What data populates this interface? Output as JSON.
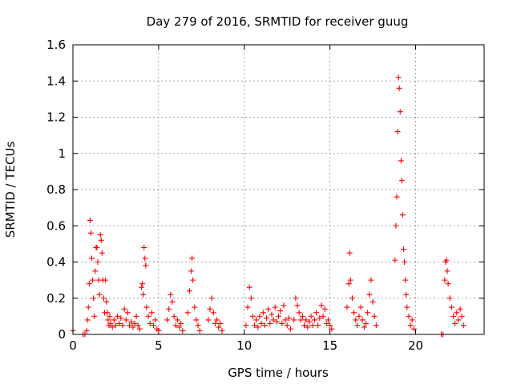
{
  "chart_data": {
    "type": "scatter",
    "title": "Day 279 of 2016, SRMTID for receiver guug",
    "xlabel": "GPS time / hours",
    "ylabel": "SRMTID / TECUs",
    "xlim": [
      0,
      24
    ],
    "ylim": [
      0,
      1.6
    ],
    "x_ticks": [
      "0",
      "5",
      "10",
      "15",
      "20"
    ],
    "y_ticks": [
      "0",
      "0.2",
      "0.4",
      "0.6",
      "0.8",
      "1",
      "1.2",
      "1.4",
      "1.6"
    ],
    "grid": true,
    "marker": "+",
    "color": "#ff0000",
    "series": [
      {
        "points": [
          [
            0.0,
            0.02
          ],
          [
            0.6,
            0.0
          ],
          [
            0.7,
            0.0
          ],
          [
            0.8,
            0.02
          ],
          [
            0.85,
            0.08
          ],
          [
            0.9,
            0.15
          ],
          [
            0.95,
            0.28
          ],
          [
            1.0,
            0.63
          ],
          [
            1.05,
            0.56
          ],
          [
            1.1,
            0.42
          ],
          [
            1.15,
            0.3
          ],
          [
            1.2,
            0.2
          ],
          [
            1.25,
            0.1
          ],
          [
            1.3,
            0.35
          ],
          [
            1.35,
            0.48
          ],
          [
            1.4,
            0.48
          ],
          [
            1.45,
            0.4
          ],
          [
            1.5,
            0.3
          ],
          [
            1.55,
            0.22
          ],
          [
            1.6,
            0.55
          ],
          [
            1.65,
            0.52
          ],
          [
            1.7,
            0.45
          ],
          [
            1.75,
            0.3
          ],
          [
            1.8,
            0.2
          ],
          [
            1.85,
            0.12
          ],
          [
            1.9,
            0.3
          ],
          [
            1.95,
            0.18
          ],
          [
            2.0,
            0.12
          ],
          [
            2.05,
            0.08
          ],
          [
            2.1,
            0.05
          ],
          [
            2.15,
            0.1
          ],
          [
            2.2,
            0.06
          ],
          [
            2.3,
            0.04
          ],
          [
            2.4,
            0.08
          ],
          [
            2.5,
            0.05
          ],
          [
            2.6,
            0.1
          ],
          [
            2.7,
            0.06
          ],
          [
            2.8,
            0.09
          ],
          [
            2.9,
            0.05
          ],
          [
            3.0,
            0.14
          ],
          [
            3.1,
            0.08
          ],
          [
            3.2,
            0.12
          ],
          [
            3.3,
            0.05
          ],
          [
            3.4,
            0.07
          ],
          [
            3.5,
            0.04
          ],
          [
            3.6,
            0.06
          ],
          [
            3.7,
            0.1
          ],
          [
            3.8,
            0.05
          ],
          [
            3.9,
            0.03
          ],
          [
            4.0,
            0.26
          ],
          [
            4.05,
            0.28
          ],
          [
            4.1,
            0.22
          ],
          [
            4.15,
            0.48
          ],
          [
            4.2,
            0.42
          ],
          [
            4.25,
            0.38
          ],
          [
            4.3,
            0.15
          ],
          [
            4.4,
            0.1
          ],
          [
            4.5,
            0.06
          ],
          [
            4.6,
            0.12
          ],
          [
            4.7,
            0.05
          ],
          [
            4.8,
            0.08
          ],
          [
            4.9,
            0.03
          ],
          [
            5.0,
            0.02
          ],
          [
            5.5,
            0.08
          ],
          [
            5.6,
            0.14
          ],
          [
            5.7,
            0.22
          ],
          [
            5.8,
            0.18
          ],
          [
            5.9,
            0.1
          ],
          [
            6.0,
            0.05
          ],
          [
            6.1,
            0.08
          ],
          [
            6.2,
            0.04
          ],
          [
            6.3,
            0.06
          ],
          [
            6.4,
            0.02
          ],
          [
            6.7,
            0.12
          ],
          [
            6.8,
            0.24
          ],
          [
            6.9,
            0.35
          ],
          [
            6.95,
            0.42
          ],
          [
            7.0,
            0.3
          ],
          [
            7.1,
            0.15
          ],
          [
            7.2,
            0.08
          ],
          [
            7.3,
            0.05
          ],
          [
            7.4,
            0.02
          ],
          [
            7.9,
            0.08
          ],
          [
            8.0,
            0.14
          ],
          [
            8.1,
            0.2
          ],
          [
            8.2,
            0.12
          ],
          [
            8.3,
            0.06
          ],
          [
            8.4,
            0.08
          ],
          [
            8.5,
            0.04
          ],
          [
            8.6,
            0.06
          ],
          [
            8.7,
            0.02
          ],
          [
            10.1,
            0.05
          ],
          [
            10.2,
            0.15
          ],
          [
            10.3,
            0.26
          ],
          [
            10.4,
            0.2
          ],
          [
            10.5,
            0.1
          ],
          [
            10.6,
            0.05
          ],
          [
            10.7,
            0.08
          ],
          [
            10.8,
            0.04
          ],
          [
            10.9,
            0.1
          ],
          [
            11.0,
            0.06
          ],
          [
            11.1,
            0.12
          ],
          [
            11.2,
            0.05
          ],
          [
            11.3,
            0.09
          ],
          [
            11.4,
            0.14
          ],
          [
            11.5,
            0.06
          ],
          [
            11.6,
            0.11
          ],
          [
            11.7,
            0.08
          ],
          [
            11.8,
            0.15
          ],
          [
            11.9,
            0.07
          ],
          [
            12.0,
            0.1
          ],
          [
            12.1,
            0.13
          ],
          [
            12.2,
            0.06
          ],
          [
            12.3,
            0.16
          ],
          [
            12.4,
            0.08
          ],
          [
            12.5,
            0.05
          ],
          [
            12.6,
            0.09
          ],
          [
            12.7,
            0.03
          ],
          [
            12.9,
            0.08
          ],
          [
            13.0,
            0.2
          ],
          [
            13.1,
            0.16
          ],
          [
            13.2,
            0.12
          ],
          [
            13.3,
            0.08
          ],
          [
            13.4,
            0.1
          ],
          [
            13.5,
            0.05
          ],
          [
            13.6,
            0.08
          ],
          [
            13.7,
            0.04
          ],
          [
            13.8,
            0.07
          ],
          [
            13.9,
            0.1
          ],
          [
            14.0,
            0.05
          ],
          [
            14.1,
            0.08
          ],
          [
            14.2,
            0.12
          ],
          [
            14.3,
            0.05
          ],
          [
            14.4,
            0.09
          ],
          [
            14.5,
            0.16
          ],
          [
            14.6,
            0.1
          ],
          [
            14.7,
            0.14
          ],
          [
            14.8,
            0.06
          ],
          [
            14.9,
            0.08
          ],
          [
            15.0,
            0.05
          ],
          [
            15.1,
            0.03
          ],
          [
            16.0,
            0.15
          ],
          [
            16.1,
            0.28
          ],
          [
            16.15,
            0.45
          ],
          [
            16.2,
            0.3
          ],
          [
            16.3,
            0.2
          ],
          [
            16.4,
            0.12
          ],
          [
            16.5,
            0.08
          ],
          [
            16.6,
            0.05
          ],
          [
            16.7,
            0.1
          ],
          [
            16.8,
            0.15
          ],
          [
            16.9,
            0.08
          ],
          [
            17.0,
            0.04
          ],
          [
            17.1,
            0.06
          ],
          [
            17.2,
            0.12
          ],
          [
            17.3,
            0.22
          ],
          [
            17.4,
            0.3
          ],
          [
            17.5,
            0.18
          ],
          [
            17.6,
            0.1
          ],
          [
            17.7,
            0.05
          ],
          [
            18.8,
            0.41
          ],
          [
            18.85,
            0.6
          ],
          [
            18.9,
            0.76
          ],
          [
            18.95,
            1.12
          ],
          [
            19.0,
            1.42
          ],
          [
            19.05,
            1.36
          ],
          [
            19.1,
            1.23
          ],
          [
            19.15,
            0.96
          ],
          [
            19.2,
            0.85
          ],
          [
            19.25,
            0.66
          ],
          [
            19.3,
            0.47
          ],
          [
            19.35,
            0.4
          ],
          [
            19.4,
            0.3
          ],
          [
            19.45,
            0.22
          ],
          [
            19.5,
            0.15
          ],
          [
            19.6,
            0.1
          ],
          [
            19.7,
            0.05
          ],
          [
            19.8,
            0.08
          ],
          [
            19.9,
            0.03
          ],
          [
            21.5,
            0.0
          ],
          [
            21.6,
            0.0
          ],
          [
            21.7,
            0.3
          ],
          [
            21.75,
            0.4
          ],
          [
            21.8,
            0.41
          ],
          [
            21.85,
            0.35
          ],
          [
            21.9,
            0.28
          ],
          [
            22.0,
            0.2
          ],
          [
            22.1,
            0.15
          ],
          [
            22.2,
            0.1
          ],
          [
            22.3,
            0.06
          ],
          [
            22.4,
            0.12
          ],
          [
            22.5,
            0.08
          ],
          [
            22.6,
            0.14
          ],
          [
            22.7,
            0.1
          ],
          [
            22.8,
            0.05
          ]
        ]
      }
    ]
  }
}
